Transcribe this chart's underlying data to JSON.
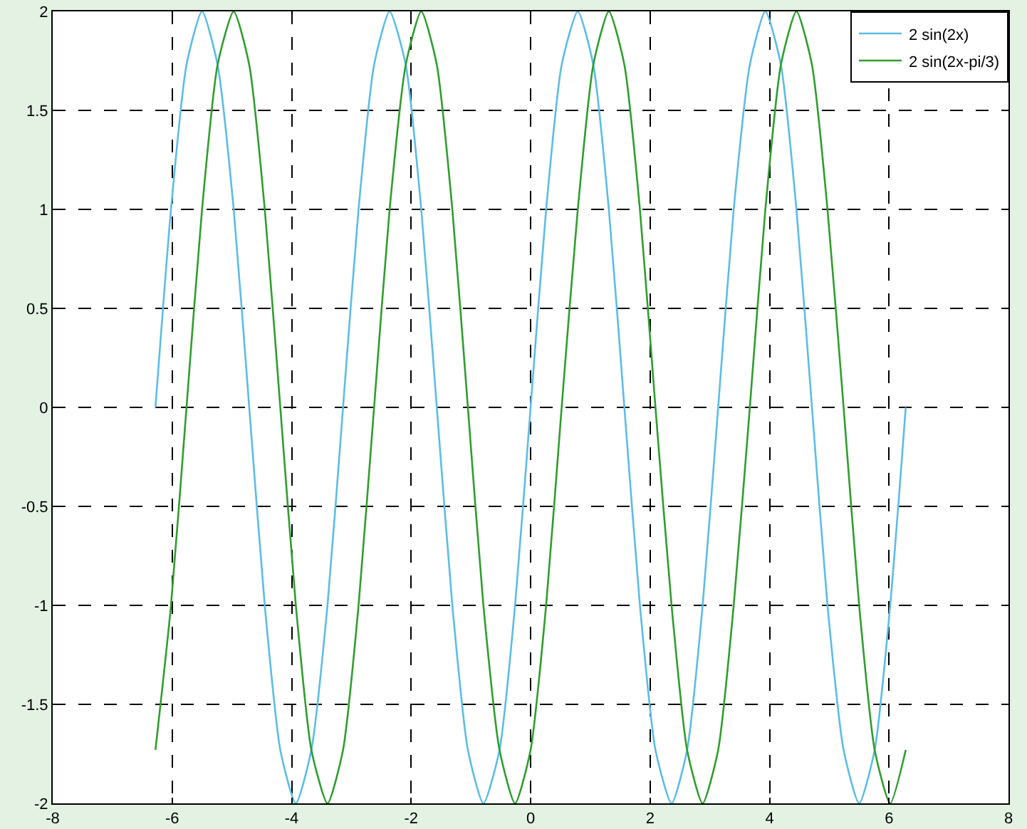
{
  "chart_data": {
    "type": "line",
    "x": [
      -6.28,
      -6.02,
      -5.76,
      -5.5,
      -5.24,
      -4.97,
      -4.71,
      -4.45,
      -4.19,
      -3.93,
      -3.67,
      -3.4,
      -3.14,
      -2.88,
      -2.62,
      -2.36,
      -2.09,
      -1.83,
      -1.57,
      -1.31,
      -1.05,
      -0.79,
      -0.52,
      -0.26,
      0,
      0.26,
      0.52,
      0.79,
      1.05,
      1.31,
      1.57,
      1.83,
      2.09,
      2.36,
      2.62,
      2.88,
      3.14,
      3.4,
      3.67,
      3.93,
      4.19,
      4.45,
      4.71,
      4.97,
      5.24,
      5.5,
      5.76,
      6.02,
      6.28
    ],
    "series": [
      {
        "name": "2 sin(2x)",
        "color": "#5bbde6",
        "values": [
          0,
          1,
          1.73,
          2,
          1.73,
          1,
          0,
          -1,
          -1.73,
          -2,
          -1.73,
          -1,
          0,
          1,
          1.73,
          2,
          1.73,
          1,
          0,
          -1,
          -1.73,
          -2,
          -1.73,
          -1,
          0,
          1,
          1.73,
          2,
          1.73,
          1,
          0,
          -1,
          -1.73,
          -2,
          -1.73,
          -1,
          0,
          1,
          1.73,
          2,
          1.73,
          1,
          0,
          -1,
          -1.73,
          -2,
          -1.73,
          -1,
          0
        ]
      },
      {
        "name": "2 sin(2x-pi/3)",
        "color": "#2e9e2e",
        "values": [
          -1.73,
          -1,
          0,
          1,
          1.73,
          2,
          1.73,
          1,
          0,
          -1,
          -1.73,
          -2,
          -1.73,
          -1,
          0,
          1,
          1.73,
          2,
          1.73,
          1,
          0,
          -1,
          -1.73,
          -2,
          -1.73,
          -1,
          0,
          1,
          1.73,
          2,
          1.73,
          1,
          0,
          -1,
          -1.73,
          -2,
          -1.73,
          -1,
          0,
          1,
          1.73,
          2,
          1.73,
          1,
          0,
          -1,
          -1.73,
          -2,
          -1.73
        ]
      }
    ],
    "xlim": [
      -8,
      8
    ],
    "xticks": [
      -8,
      -6,
      -4,
      -2,
      0,
      2,
      4,
      6,
      8
    ],
    "ylim": [
      -2,
      2
    ],
    "yticks": [
      -2,
      -1.5,
      -1,
      -0.5,
      0,
      0.5,
      1,
      1.5,
      2
    ],
    "grid": true,
    "legend": "top right",
    "marker": "none",
    "line_style": "solid"
  }
}
